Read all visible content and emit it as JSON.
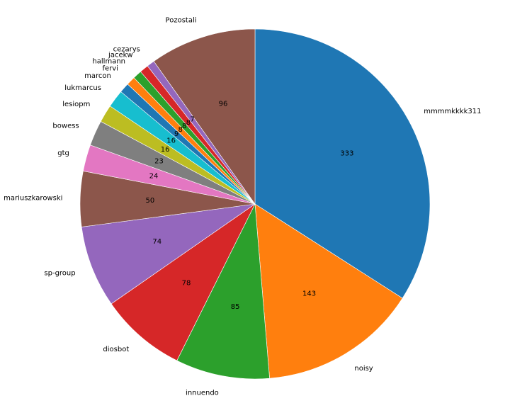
{
  "chart_data": {
    "type": "pie",
    "title": "",
    "start_angle_deg": 90,
    "direction": "clockwise",
    "slices": [
      {
        "label": "mmmmkkkk311",
        "value": 333,
        "color": "#1f77b4"
      },
      {
        "label": "noisy",
        "value": 143,
        "color": "#ff7f0e"
      },
      {
        "label": "innuendo",
        "value": 85,
        "color": "#2ca02c"
      },
      {
        "label": "diosbot",
        "value": 78,
        "color": "#d62728"
      },
      {
        "label": "sp-group",
        "value": 74,
        "color": "#9467bd"
      },
      {
        "label": "mariuszkarowski",
        "value": 50,
        "color": "#8c564b"
      },
      {
        "label": "gtg",
        "value": 24,
        "color": "#e377c2"
      },
      {
        "label": "bowess",
        "value": 23,
        "color": "#7f7f7f"
      },
      {
        "label": "lesiopm",
        "value": 16,
        "color": "#bcbd22"
      },
      {
        "label": "lukmarcus",
        "value": 16,
        "color": "#17becf"
      },
      {
        "label": "marcon",
        "value": 9,
        "color": "#1f77b4"
      },
      {
        "label": "fervi",
        "value": 8,
        "color": "#ff7f0e"
      },
      {
        "label": "hallmann",
        "value": 8,
        "color": "#2ca02c"
      },
      {
        "label": "jacekw",
        "value": 8,
        "color": "#d62728"
      },
      {
        "label": "cezarys",
        "value": 7,
        "color": "#9467bd"
      },
      {
        "label": "Pozostali",
        "value": 96,
        "color": "#8c564b"
      }
    ]
  }
}
